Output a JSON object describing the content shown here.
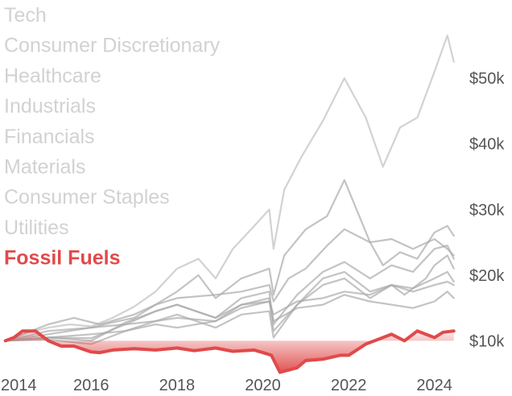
{
  "chart_data": {
    "type": "line",
    "title": "",
    "xlabel": "",
    "ylabel": "",
    "xlim": [
      2013.95,
      2024.55
    ],
    "ylim": [
      6500,
      57000
    ],
    "x_ticks": [
      2014,
      2016,
      2018,
      2020,
      2022,
      2024
    ],
    "x_tick_labels": [
      "2014",
      "2016",
      "2018",
      "2020",
      "2022",
      "2024"
    ],
    "y_ticks": [
      10000,
      20000,
      30000,
      40000,
      50000
    ],
    "y_tick_labels": [
      "$10k",
      "$20k",
      "$30k",
      "$40k",
      "$50k"
    ],
    "baseline": 10000,
    "grid": false,
    "legend": "top-left",
    "colors": {
      "highlight": "#e04a4a",
      "muted": "#d2d2d2",
      "muted_dark": "#aaaaaa",
      "fill": "#e04a4a"
    },
    "series": [
      {
        "name": "Tech",
        "highlight": false,
        "x": [
          2014,
          2014.5,
          2015,
          2015.5,
          2016,
          2016.5,
          2017,
          2017.5,
          2018,
          2018.5,
          2018.9,
          2019.3,
          2019.8,
          2020.15,
          2020.25,
          2020.5,
          2020.9,
          2021.4,
          2021.9,
          2022.4,
          2022.8,
          2023.2,
          2023.6,
          2024.0,
          2024.3,
          2024.45
        ],
        "y": [
          10000,
          11200,
          12000,
          12500,
          12200,
          13500,
          15200,
          17500,
          21000,
          22500,
          19500,
          24000,
          27500,
          30000,
          24000,
          33000,
          38000,
          43500,
          50000,
          44000,
          36500,
          42500,
          44000,
          51000,
          56500,
          52500
        ]
      },
      {
        "name": "Consumer Discretionary",
        "highlight": false,
        "x": [
          2014,
          2015,
          2016,
          2016.5,
          2017,
          2017.5,
          2018,
          2018.5,
          2018.9,
          2019.5,
          2020.15,
          2020.25,
          2020.5,
          2021,
          2021.5,
          2021.9,
          2022.5,
          2022.8,
          2023.2,
          2023.6,
          2024.0,
          2024.3,
          2024.45
        ],
        "y": [
          10000,
          11500,
          12000,
          12800,
          13500,
          15500,
          17500,
          20000,
          16500,
          19500,
          21000,
          17000,
          23000,
          27000,
          29000,
          34500,
          25000,
          21500,
          23500,
          22500,
          26500,
          27500,
          26000
        ]
      },
      {
        "name": "Healthcare",
        "highlight": false,
        "x": [
          2014,
          2015,
          2015.6,
          2016.2,
          2017,
          2017.5,
          2018,
          2018.9,
          2019.5,
          2020.15,
          2020.25,
          2020.6,
          2021,
          2021.5,
          2021.9,
          2022.5,
          2023,
          2023.5,
          2024.0,
          2024.3,
          2024.45
        ],
        "y": [
          10000,
          12500,
          13500,
          12500,
          14000,
          15500,
          16500,
          17000,
          17500,
          18500,
          16000,
          19500,
          21000,
          24500,
          27000,
          25000,
          25500,
          24000,
          25500,
          24000,
          23000
        ]
      },
      {
        "name": "Industrials",
        "highlight": false,
        "x": [
          2014,
          2015,
          2016,
          2016.8,
          2017.5,
          2018,
          2018.9,
          2019.5,
          2020.15,
          2020.25,
          2020.8,
          2021.4,
          2021.9,
          2022.5,
          2023,
          2023.5,
          2024.0,
          2024.3,
          2024.45
        ],
        "y": [
          10000,
          10500,
          10400,
          12500,
          14500,
          15500,
          13500,
          16500,
          17500,
          12500,
          17000,
          20500,
          22000,
          19500,
          21500,
          20500,
          24000,
          24500,
          22500
        ]
      },
      {
        "name": "Financials",
        "highlight": false,
        "x": [
          2014,
          2015,
          2016,
          2016.8,
          2017.5,
          2018,
          2018.9,
          2019.5,
          2020.15,
          2020.25,
          2020.8,
          2021.4,
          2021.9,
          2022.5,
          2023,
          2023.3,
          2023.8,
          2024.0,
          2024.3,
          2024.45
        ],
        "y": [
          10000,
          10500,
          10000,
          12800,
          14500,
          15500,
          13500,
          15500,
          16500,
          11500,
          15500,
          19500,
          20500,
          17500,
          18500,
          17000,
          19500,
          21500,
          23000,
          21000
        ]
      },
      {
        "name": "Materials",
        "highlight": false,
        "x": [
          2014,
          2015,
          2016,
          2016.8,
          2017.5,
          2018,
          2018.9,
          2019.5,
          2020.15,
          2020.25,
          2020.8,
          2021.4,
          2021.9,
          2022.5,
          2023,
          2023.5,
          2024.0,
          2024.3,
          2024.45
        ],
        "y": [
          10000,
          10200,
          9500,
          11500,
          13000,
          14000,
          12000,
          14000,
          14500,
          10500,
          15500,
          18500,
          19500,
          16500,
          18500,
          18000,
          19500,
          20500,
          19000
        ]
      },
      {
        "name": "Consumer Staples",
        "highlight": false,
        "x": [
          2014,
          2015,
          2016,
          2016.8,
          2017.5,
          2018,
          2018.9,
          2019.5,
          2020.15,
          2020.25,
          2020.8,
          2021.4,
          2021.9,
          2022.5,
          2023,
          2023.5,
          2024.0,
          2024.3,
          2024.45
        ],
        "y": [
          10000,
          11000,
          12000,
          12500,
          13000,
          13500,
          13000,
          15500,
          16000,
          14000,
          16000,
          16500,
          17500,
          17000,
          18500,
          17500,
          18500,
          19000,
          18500
        ]
      },
      {
        "name": "Utilities",
        "highlight": false,
        "x": [
          2014,
          2015,
          2016,
          2016.8,
          2017.5,
          2018,
          2018.9,
          2019.5,
          2020.15,
          2020.25,
          2020.8,
          2021.4,
          2021.9,
          2022.5,
          2023,
          2023.5,
          2024.0,
          2024.3,
          2024.45
        ],
        "y": [
          10000,
          10500,
          11000,
          11500,
          12500,
          12000,
          13000,
          15000,
          16000,
          13000,
          15000,
          15500,
          17000,
          16000,
          15500,
          15000,
          16000,
          17500,
          16500
        ]
      },
      {
        "name": "Fossil Fuels",
        "highlight": true,
        "x": [
          2014,
          2014.2,
          2014.4,
          2014.7,
          2015,
          2015.3,
          2015.6,
          2016.0,
          2016.2,
          2016.5,
          2017,
          2017.5,
          2018.0,
          2018.4,
          2018.9,
          2019.3,
          2019.8,
          2020.0,
          2020.2,
          2020.4,
          2020.8,
          2021.0,
          2021.4,
          2021.8,
          2022.0,
          2022.4,
          2022.8,
          2023.0,
          2023.3,
          2023.6,
          2024.0,
          2024.2,
          2024.45
        ],
        "y": [
          10000,
          10500,
          11500,
          11500,
          10000,
          9200,
          9200,
          8300,
          8200,
          8600,
          8800,
          8600,
          8900,
          8500,
          8900,
          8400,
          8600,
          8200,
          7800,
          5200,
          5900,
          7000,
          7200,
          7800,
          7800,
          9500,
          10500,
          11000,
          10000,
          11500,
          10500,
          11300,
          11500
        ]
      }
    ]
  }
}
